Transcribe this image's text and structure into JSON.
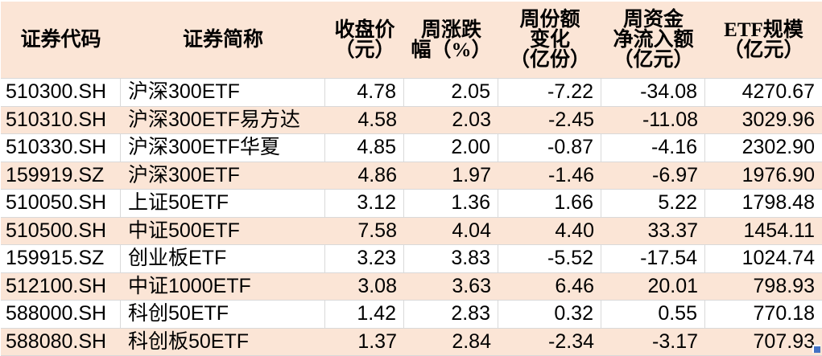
{
  "colors": {
    "peach": "#fbe5d6",
    "grid": "#d9d9d9",
    "text": "#000000",
    "handle": "#4472c4"
  },
  "table": {
    "columns": [
      {
        "key": "code",
        "label": "证券代码"
      },
      {
        "key": "name",
        "label": "证券简称"
      },
      {
        "key": "close-price",
        "label": "收盘价\n（元）"
      },
      {
        "key": "weekly-change-pct",
        "label": "周涨跌\n幅（%）"
      },
      {
        "key": "weekly-share-change",
        "label": "周份额\n变化\n（亿份）"
      },
      {
        "key": "weekly-net-inflow",
        "label": "周资金\n净流入额\n（亿元）"
      },
      {
        "key": "etf-scale",
        "label": "ETF规模\n（亿元）"
      }
    ],
    "rows": [
      [
        "510300.SH",
        "沪深300ETF",
        "4.78",
        "2.05",
        "-7.22",
        "-34.08",
        "4270.67"
      ],
      [
        "510310.SH",
        "沪深300ETF易方达",
        "4.58",
        "2.03",
        "-2.45",
        "-11.08",
        "3029.96"
      ],
      [
        "510330.SH",
        "沪深300ETF华夏",
        "4.85",
        "2.00",
        "-0.87",
        "-4.16",
        "2302.90"
      ],
      [
        "159919.SZ",
        "沪深300ETF",
        "4.86",
        "1.97",
        "-1.46",
        "-6.97",
        "1976.90"
      ],
      [
        "510050.SH",
        "上证50ETF",
        "3.12",
        "1.36",
        "1.66",
        "5.22",
        "1798.48"
      ],
      [
        "510500.SH",
        "中证500ETF",
        "7.58",
        "4.04",
        "4.40",
        "33.37",
        "1454.11"
      ],
      [
        "159915.SZ",
        "创业板ETF",
        "3.23",
        "3.83",
        "-5.52",
        "-17.54",
        "1024.74"
      ],
      [
        "512100.SH",
        "中证1000ETF",
        "3.08",
        "3.63",
        "6.46",
        "20.01",
        "798.93"
      ],
      [
        "588000.SH",
        "科创50ETF",
        "1.42",
        "2.83",
        "0.32",
        "0.55",
        "770.18"
      ],
      [
        "588080.SH",
        "科创板50ETF",
        "1.37",
        "2.84",
        "-2.34",
        "-3.17",
        "707.93"
      ]
    ]
  }
}
